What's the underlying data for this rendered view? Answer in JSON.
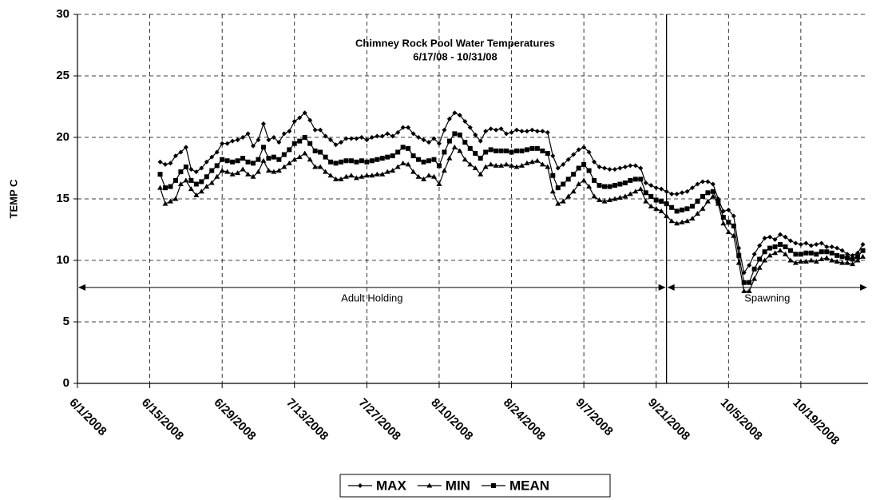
{
  "chart_data": {
    "type": "line",
    "title": "Chimney Rock Pool Water Temperatures",
    "subtitle": "6/17/08 - 10/31/08",
    "y_label": "TEMP C",
    "xlim": [
      "6/1/2008",
      "11/1/2008"
    ],
    "xticks": [
      "6/1/2008",
      "6/15/2008",
      "6/29/2008",
      "7/13/2008",
      "7/27/2008",
      "8/10/2008",
      "8/24/2008",
      "9/7/2008",
      "9/21/2008",
      "10/5/2008",
      "10/19/2008"
    ],
    "ylim": [
      0,
      30
    ],
    "yticks": [
      0,
      5,
      10,
      15,
      20,
      25,
      30
    ],
    "grid": true,
    "legend": "bottom",
    "periods": [
      {
        "label": "Adult Holding",
        "start": "6/1/2008",
        "end": "9/23/2008",
        "y": 7.8
      },
      {
        "label": "Spawning",
        "start": "9/23/2008",
        "end": "11/1/2008",
        "y": 7.8
      }
    ],
    "x": [
      "6/17/2008",
      "6/18/2008",
      "6/19/2008",
      "6/20/2008",
      "6/21/2008",
      "6/22/2008",
      "6/23/2008",
      "6/24/2008",
      "6/25/2008",
      "6/26/2008",
      "6/27/2008",
      "6/28/2008",
      "6/29/2008",
      "6/30/2008",
      "7/1/2008",
      "7/2/2008",
      "7/3/2008",
      "7/4/2008",
      "7/5/2008",
      "7/6/2008",
      "7/7/2008",
      "7/8/2008",
      "7/9/2008",
      "7/10/2008",
      "7/11/2008",
      "7/12/2008",
      "7/13/2008",
      "7/14/2008",
      "7/15/2008",
      "7/16/2008",
      "7/17/2008",
      "7/18/2008",
      "7/19/2008",
      "7/20/2008",
      "7/21/2008",
      "7/22/2008",
      "7/23/2008",
      "7/24/2008",
      "7/25/2008",
      "7/26/2008",
      "7/27/2008",
      "7/28/2008",
      "7/29/2008",
      "7/30/2008",
      "7/31/2008",
      "8/1/2008",
      "8/2/2008",
      "8/3/2008",
      "8/4/2008",
      "8/5/2008",
      "8/6/2008",
      "8/7/2008",
      "8/8/2008",
      "8/9/2008",
      "8/10/2008",
      "8/11/2008",
      "8/12/2008",
      "8/13/2008",
      "8/14/2008",
      "8/15/2008",
      "8/16/2008",
      "8/17/2008",
      "8/18/2008",
      "8/19/2008",
      "8/20/2008",
      "8/21/2008",
      "8/22/2008",
      "8/23/2008",
      "8/24/2008",
      "8/25/2008",
      "8/26/2008",
      "8/27/2008",
      "8/28/2008",
      "8/29/2008",
      "8/30/2008",
      "8/31/2008",
      "9/1/2008",
      "9/2/2008",
      "9/3/2008",
      "9/4/2008",
      "9/5/2008",
      "9/6/2008",
      "9/7/2008",
      "9/8/2008",
      "9/9/2008",
      "9/10/2008",
      "9/11/2008",
      "9/12/2008",
      "9/13/2008",
      "9/14/2008",
      "9/15/2008",
      "9/16/2008",
      "9/17/2008",
      "9/18/2008",
      "9/19/2008",
      "9/20/2008",
      "9/21/2008",
      "9/22/2008",
      "9/23/2008",
      "9/24/2008",
      "9/25/2008",
      "9/26/2008",
      "9/27/2008",
      "9/28/2008",
      "9/29/2008",
      "9/30/2008",
      "10/1/2008",
      "10/2/2008",
      "10/3/2008",
      "10/4/2008",
      "10/5/2008",
      "10/6/2008",
      "10/7/2008",
      "10/8/2008",
      "10/9/2008",
      "10/10/2008",
      "10/11/2008",
      "10/12/2008",
      "10/13/2008",
      "10/14/2008",
      "10/15/2008",
      "10/16/2008",
      "10/17/2008",
      "10/18/2008",
      "10/19/2008",
      "10/20/2008",
      "10/21/2008",
      "10/22/2008",
      "10/23/2008",
      "10/24/2008",
      "10/25/2008",
      "10/26/2008",
      "10/27/2008",
      "10/28/2008",
      "10/29/2008",
      "10/30/2008",
      "10/31/2008"
    ],
    "series": [
      {
        "name": "MAX",
        "color": "#000000",
        "marker": "diamond",
        "values": [
          18.0,
          17.8,
          17.9,
          18.5,
          18.8,
          19.2,
          17.4,
          17.2,
          17.5,
          18.0,
          18.4,
          18.8,
          19.5,
          19.5,
          19.7,
          19.8,
          20.0,
          20.3,
          19.3,
          19.8,
          21.1,
          19.8,
          20.0,
          19.6,
          20.3,
          20.5,
          21.3,
          21.6,
          22.0,
          21.4,
          20.6,
          20.6,
          20.1,
          19.8,
          19.4,
          19.6,
          19.9,
          19.9,
          19.9,
          20.0,
          19.8,
          20.0,
          20.1,
          20.1,
          20.3,
          20.1,
          20.4,
          20.8,
          20.8,
          20.3,
          20.0,
          19.8,
          19.6,
          19.9,
          19.5,
          20.6,
          21.5,
          22.0,
          21.8,
          21.3,
          20.8,
          20.2,
          19.7,
          20.5,
          20.7,
          20.6,
          20.7,
          20.3,
          20.4,
          20.6,
          20.5,
          20.5,
          20.6,
          20.5,
          20.5,
          20.4,
          18.5,
          17.5,
          17.8,
          18.2,
          18.6,
          19.0,
          19.2,
          18.8,
          18.0,
          17.6,
          17.5,
          17.4,
          17.4,
          17.5,
          17.6,
          17.7,
          17.7,
          17.5,
          16.3,
          16.1,
          15.9,
          15.8,
          15.6,
          15.4,
          15.4,
          15.5,
          15.6,
          15.9,
          16.2,
          16.4,
          16.4,
          16.2,
          15.0,
          14.0,
          14.1,
          13.6,
          11.0,
          9.0,
          9.6,
          10.5,
          11.2,
          11.8,
          11.9,
          11.7,
          12.1,
          11.9,
          11.6,
          11.4,
          11.3,
          11.4,
          11.2,
          11.3,
          11.4,
          11.1,
          11.1,
          11.0,
          10.8,
          10.5,
          10.4,
          10.6,
          11.3
        ]
      },
      {
        "name": "MIN",
        "color": "#000000",
        "marker": "triangle",
        "values": [
          15.9,
          14.6,
          14.8,
          15.0,
          16.2,
          16.5,
          15.8,
          15.3,
          15.6,
          16.0,
          16.3,
          16.8,
          17.3,
          17.2,
          17.0,
          17.1,
          17.4,
          17.0,
          16.8,
          17.2,
          18.1,
          17.3,
          17.2,
          17.3,
          17.6,
          17.9,
          18.2,
          18.4,
          18.7,
          18.2,
          17.6,
          17.6,
          17.2,
          16.9,
          16.6,
          16.6,
          16.8,
          16.9,
          16.7,
          16.8,
          16.9,
          16.9,
          17.0,
          17.0,
          17.2,
          17.3,
          17.6,
          17.9,
          17.8,
          17.2,
          16.8,
          16.6,
          16.9,
          16.8,
          16.2,
          17.3,
          18.3,
          19.2,
          18.9,
          18.2,
          17.8,
          17.5,
          17.0,
          17.6,
          17.8,
          17.7,
          17.7,
          17.8,
          17.7,
          17.6,
          17.7,
          17.9,
          18.0,
          18.1,
          17.8,
          17.6,
          15.6,
          14.6,
          14.8,
          15.2,
          15.6,
          16.2,
          16.5,
          16.0,
          15.2,
          14.9,
          14.8,
          14.9,
          15.0,
          15.1,
          15.2,
          15.4,
          15.6,
          15.8,
          14.8,
          14.4,
          14.2,
          14.0,
          13.6,
          13.2,
          13.0,
          13.1,
          13.2,
          13.4,
          13.8,
          14.2,
          14.8,
          15.2,
          14.6,
          13.0,
          12.3,
          12.0,
          9.8,
          7.5,
          7.5,
          8.5,
          9.4,
          10.0,
          10.4,
          10.6,
          10.8,
          10.5,
          10.0,
          9.8,
          9.9,
          9.9,
          10.0,
          9.9,
          10.1,
          10.2,
          10.0,
          9.9,
          9.8,
          9.8,
          9.7,
          10.0,
          10.3
        ]
      },
      {
        "name": "MEAN",
        "color": "#000000",
        "marker": "square",
        "values": [
          17.0,
          15.9,
          16.0,
          16.5,
          17.2,
          17.6,
          16.5,
          16.2,
          16.4,
          16.8,
          17.3,
          17.7,
          18.2,
          18.1,
          18.0,
          18.1,
          18.3,
          18.0,
          17.9,
          18.2,
          19.2,
          18.3,
          18.4,
          18.2,
          18.6,
          19.0,
          19.5,
          19.7,
          20.0,
          19.5,
          18.9,
          18.8,
          18.4,
          18.0,
          17.9,
          18.0,
          18.1,
          18.1,
          18.0,
          18.1,
          18.0,
          18.1,
          18.2,
          18.3,
          18.4,
          18.5,
          18.8,
          19.2,
          19.1,
          18.5,
          18.2,
          18.0,
          18.1,
          18.2,
          17.7,
          18.8,
          19.7,
          20.3,
          20.2,
          19.6,
          19.1,
          18.7,
          18.3,
          18.8,
          19.0,
          18.9,
          18.9,
          18.9,
          18.8,
          18.9,
          18.9,
          19.0,
          19.1,
          19.1,
          18.9,
          18.7,
          16.9,
          15.9,
          16.2,
          16.6,
          17.0,
          17.5,
          17.8,
          17.3,
          16.5,
          16.1,
          16.0,
          16.0,
          16.1,
          16.2,
          16.3,
          16.5,
          16.6,
          16.6,
          15.5,
          15.2,
          14.9,
          14.8,
          14.6,
          14.3,
          14.0,
          14.1,
          14.2,
          14.4,
          14.8,
          15.2,
          15.5,
          15.6,
          14.8,
          13.5,
          13.1,
          12.8,
          10.4,
          8.2,
          8.2,
          9.3,
          10.1,
          10.7,
          11.0,
          11.1,
          11.3,
          11.1,
          10.8,
          10.5,
          10.5,
          10.6,
          10.6,
          10.5,
          10.7,
          10.7,
          10.6,
          10.4,
          10.3,
          10.2,
          10.1,
          10.3,
          10.8
        ]
      }
    ]
  }
}
